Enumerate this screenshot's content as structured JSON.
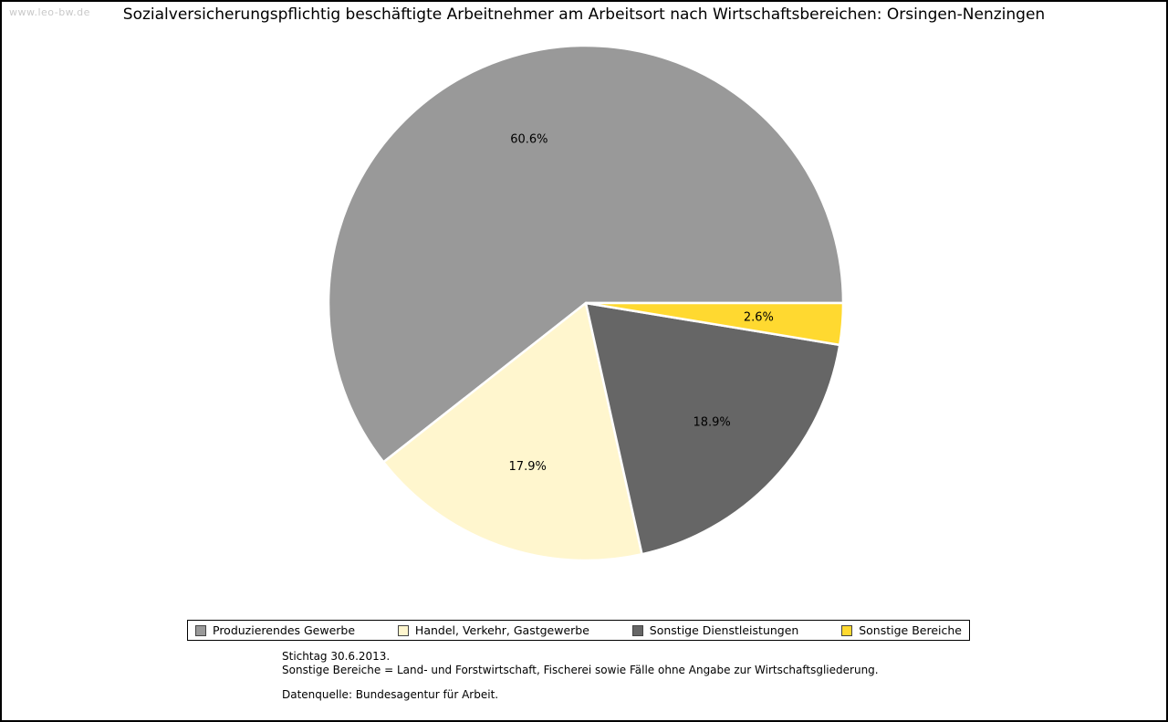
{
  "watermark": "www.leo-bw.de",
  "title": "Sozialversicherungspflichtig beschäftigte Arbeitnehmer am Arbeitsort nach Wirtschaftsbereichen: Orsingen-Nenzingen",
  "chart_data": {
    "type": "pie",
    "title": "Sozialversicherungspflichtig beschäftigte Arbeitnehmer am Arbeitsort nach Wirtschaftsbereichen: Orsingen-Nenzingen",
    "unit": "percent",
    "start_angle_deg": 0,
    "direction": "counterclockwise",
    "legend_position": "bottom",
    "slices": [
      {
        "label": "Produzierendes Gewerbe",
        "value": 60.6,
        "display": "60.6%",
        "color": "#999999"
      },
      {
        "label": "Handel, Verkehr, Gastgewerbe",
        "value": 17.9,
        "display": "17.9%",
        "color": "#FFF6CE"
      },
      {
        "label": "Sonstige Dienstleistungen",
        "value": 18.9,
        "display": "18.9%",
        "color": "#666666"
      },
      {
        "label": "Sonstige Bereiche",
        "value": 2.6,
        "display": "2.6%",
        "color": "#FFD930"
      }
    ]
  },
  "footnotes": {
    "line1": "Stichtag 30.6.2013.",
    "line2": "Sonstige Bereiche = Land- und Forstwirtschaft, Fischerei sowie Fälle ohne Angabe zur Wirtschaftsgliederung.",
    "line3": "Datenquelle: Bundesagentur für Arbeit."
  }
}
